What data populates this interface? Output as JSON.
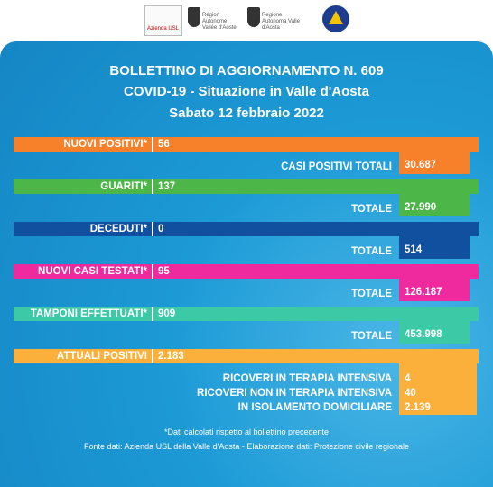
{
  "header": {
    "logos": [
      "Azienda USL",
      "Région Autonome Vallée d'Aoste",
      "Regione Autonoma Valle d'Aosta"
    ]
  },
  "title": {
    "line1": "BOLLETTINO DI AGGIORNAMENTO N. 609",
    "line2": "COVID-19 - Situazione in Valle d'Aosta",
    "date": "Sabato 12 febbraio 2022"
  },
  "rows": [
    {
      "label": "NUOVI POSITIVI*",
      "value": "56",
      "total_label": "CASI POSITIVI TOTALI",
      "total": "30.687",
      "color": "#f7802b"
    },
    {
      "label": "GUARITI*",
      "value": "137",
      "total_label": "TOTALE",
      "total": "27.990",
      "color": "#4cb748"
    },
    {
      "label": "DECEDUTI*",
      "value": "0",
      "total_label": "TOTALE",
      "total": "514",
      "color": "#114f9f"
    },
    {
      "label": "NUOVI CASI TESTATI*",
      "value": "95",
      "total_label": "TOTALE",
      "total": "126.187",
      "color": "#ee2a9e"
    },
    {
      "label": "TAMPONI EFFETTUATI*",
      "value": "909",
      "total_label": "TOTALE",
      "total": "453.998",
      "color": "#3ccaa6"
    }
  ],
  "attuali": {
    "label": "ATTUALI POSITIVI",
    "value": "2.183",
    "color": "#fbb03b",
    "details": [
      {
        "label": "RICOVERI IN TERAPIA INTENSIVA",
        "value": "4"
      },
      {
        "label": "RICOVERI NON IN TERAPIA INTENSIVA",
        "value": "40"
      },
      {
        "label": "IN ISOLAMENTO DOMICILIARE",
        "value": "2.139"
      }
    ]
  },
  "notes": [
    "*Dati calcolati rispetto al bollettino precedente",
    "Fonte dati: Azienda USL della Valle d'Aosta - Elaborazione dati: Protezione civile regionale"
  ]
}
